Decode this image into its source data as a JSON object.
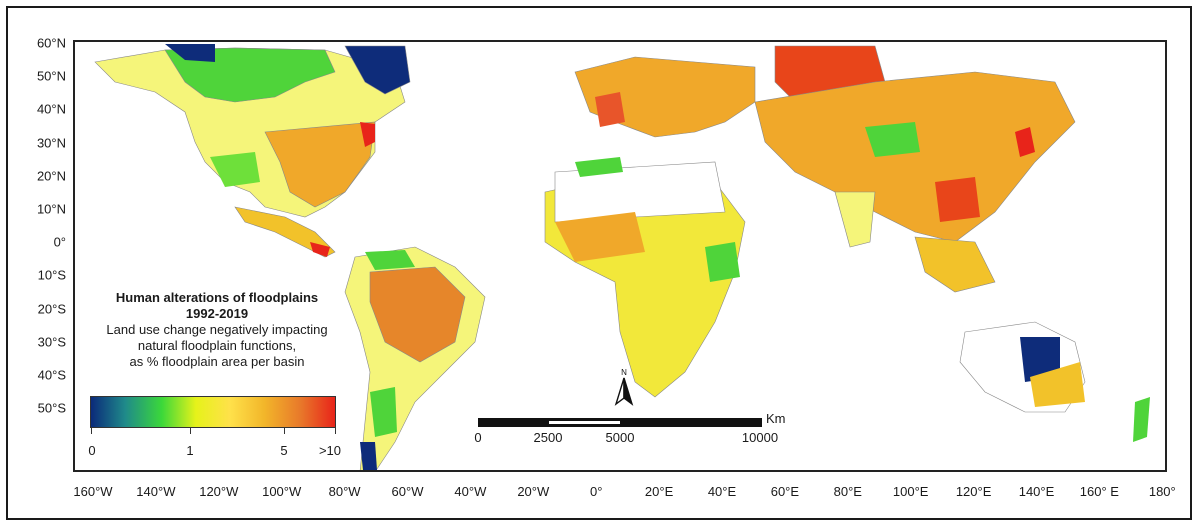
{
  "legend": {
    "title_line1": "Human alterations of floodplains",
    "title_line2": "1992-2019",
    "desc_line1": "Land use change negatively impacting",
    "desc_line2": "natural floodplain functions,",
    "desc_line3": "as % floodplain area per basin",
    "ticks": [
      "0",
      "1",
      "5",
      ">10"
    ],
    "colors": [
      "#0b2a7a",
      "#1f8a8a",
      "#3bd83a",
      "#e6f21a",
      "#ffe14a",
      "#f2b62a",
      "#e8782a",
      "#e8241a"
    ]
  },
  "lat_labels": [
    "60°N",
    "50°N",
    "40°N",
    "30°N",
    "20°N",
    "10°N",
    "0°",
    "10°S",
    "20°S",
    "30°S",
    "40°S",
    "50°S"
  ],
  "lon_labels": [
    "160°W",
    "140°W",
    "120°W",
    "100°W",
    "80°W",
    "60°W",
    "40°W",
    "20°W",
    "0°",
    "20°E",
    "40°E",
    "60°E",
    "80°E",
    "100°E",
    "120°E",
    "140°E",
    "160° E",
    "180°"
  ],
  "scale": {
    "unit": "Km",
    "labels": [
      "0",
      "2500",
      "5000",
      "10000"
    ]
  },
  "north": {
    "label": "N"
  }
}
